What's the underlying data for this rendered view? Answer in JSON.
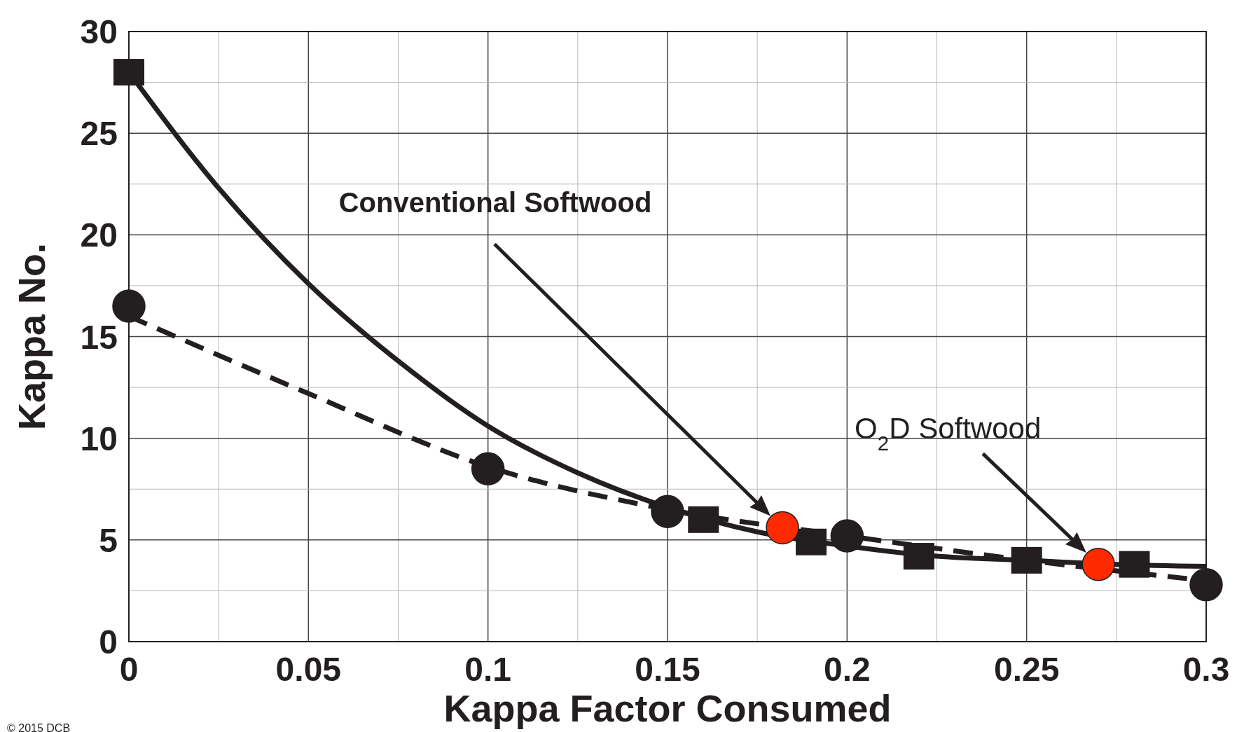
{
  "chart_data": {
    "type": "scatter",
    "xlabel": "Kappa Factor Consumed",
    "ylabel": "Kappa No.",
    "xlim": [
      0,
      0.3
    ],
    "ylim": [
      0,
      30
    ],
    "xticks": [
      0,
      {
        "value": 0.025,
        "label": null
      },
      0.05,
      {
        "value": 0.075,
        "label": null
      },
      0.1,
      {
        "value": 0.125,
        "label": null
      },
      0.15,
      {
        "value": 0.175,
        "label": null
      },
      0.2,
      {
        "value": 0.225,
        "label": null
      },
      0.25,
      {
        "value": 0.275,
        "label": null
      },
      0.3
    ],
    "yticks": [
      0,
      {
        "value": 2.5,
        "label": null
      },
      5,
      {
        "value": 7.5,
        "label": null
      },
      10,
      {
        "value": 12.5,
        "label": null
      },
      15,
      {
        "value": 17.5,
        "label": null
      },
      20,
      {
        "value": 22.5,
        "label": null
      },
      25,
      {
        "value": 27.5,
        "label": null
      },
      30
    ],
    "grid": true,
    "series": [
      {
        "type": "line",
        "color": "#231f20",
        "line_style": "solid",
        "marker": "none",
        "x": [
          0,
          0.025,
          0.05,
          0.075,
          0.1,
          0.125,
          0.15,
          0.175,
          0.2,
          0.225,
          0.25,
          0.275,
          0.3
        ],
        "values": [
          28,
          22.3,
          17.6,
          13.8,
          10.6,
          8.3,
          6.6,
          5.4,
          4.7,
          4.2,
          4.0,
          3.8,
          3.7
        ]
      },
      {
        "type": "line",
        "color": "#231f20",
        "line_style": "dashed",
        "marker": "none",
        "x": [
          0,
          0.05,
          0.1,
          0.15,
          0.2,
          0.25,
          0.3
        ],
        "values": [
          16,
          12.2,
          8.6,
          6.5,
          5.2,
          4.0,
          3.0
        ]
      },
      {
        "color": "#231f20",
        "marker": "square",
        "x": [
          0,
          0.16,
          0.19,
          0.22,
          0.25,
          0.28
        ],
        "values": [
          28,
          6,
          4.9,
          4.2,
          4.0,
          3.8
        ]
      },
      {
        "color": "#231f20",
        "marker": "circle",
        "x": [
          0,
          0.1,
          0.15,
          0.2,
          0.3
        ],
        "values": [
          16.5,
          8.5,
          6.4,
          5.2,
          2.8
        ]
      },
      {
        "color": "#ff2a00",
        "marker": "circle",
        "x": [
          0.182,
          0.27
        ],
        "values": [
          5.6,
          3.8
        ]
      }
    ],
    "annotations": [
      "Conventional Softwood",
      "O$_{2}$D Softwood",
      "© 2015  DCB"
    ]
  }
}
